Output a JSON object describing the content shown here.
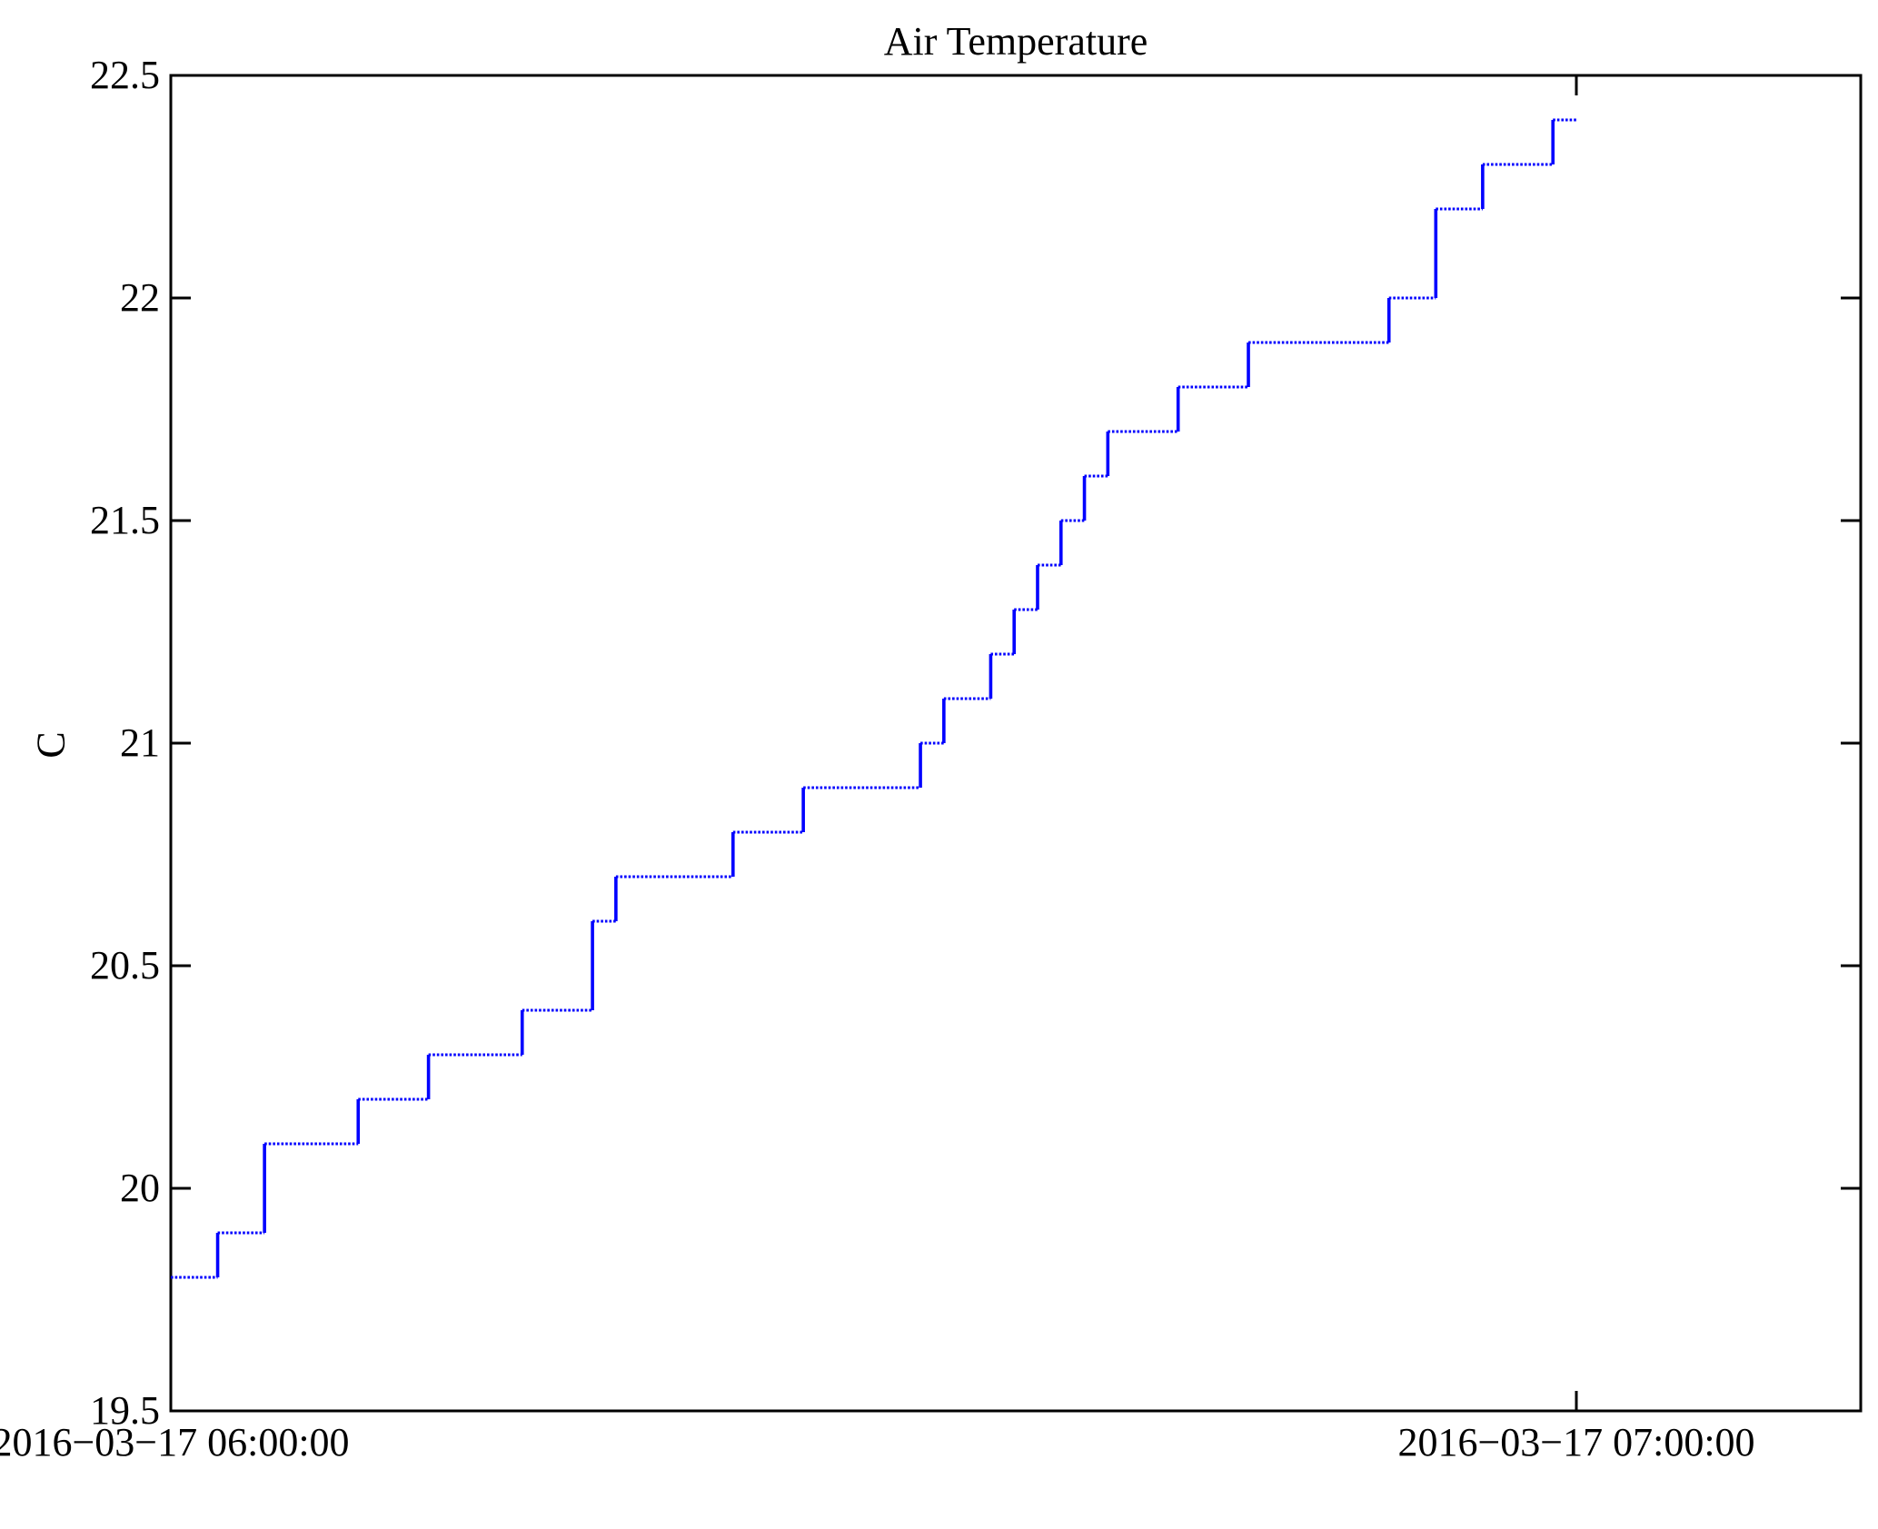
{
  "chart_data": {
    "type": "line",
    "style": "step",
    "title": "Air Temperature",
    "ylabel": "C",
    "grid": false,
    "legend": "none",
    "line_color": "#0000ff",
    "axis_color": "#000000",
    "background_color": "#ffffff",
    "x_axis": {
      "tick_labels": [
        "2016−03−17 06:00:00",
        "2016−03−17 07:00:00"
      ],
      "tick_minutes": [
        0,
        60
      ],
      "minutes_span": 60,
      "xlim_minutes": [
        0,
        72.1
      ]
    },
    "y_axis": {
      "min": 19.5,
      "max": 22.5,
      "tick_values": [
        19.5,
        20,
        20.5,
        21,
        21.5,
        22,
        22.5
      ],
      "tick_labels": [
        "19.5",
        "20",
        "20.5",
        "21",
        "21.5",
        "22",
        "22.5"
      ]
    },
    "series": [
      {
        "name": "air-temperature",
        "unit": "C",
        "points_minutes_celsius": [
          [
            0,
            19.8
          ],
          [
            2,
            19.9
          ],
          [
            4,
            20.1
          ],
          [
            8,
            20.2
          ],
          [
            11,
            20.3
          ],
          [
            15,
            20.4
          ],
          [
            18,
            20.6
          ],
          [
            19,
            20.7
          ],
          [
            24,
            20.8
          ],
          [
            27,
            20.9
          ],
          [
            32,
            21.0
          ],
          [
            33,
            21.1
          ],
          [
            35,
            21.2
          ],
          [
            36,
            21.3
          ],
          [
            37,
            21.4
          ],
          [
            38,
            21.5
          ],
          [
            39,
            21.6
          ],
          [
            40,
            21.7
          ],
          [
            43,
            21.8
          ],
          [
            46,
            21.9
          ],
          [
            52,
            22.0
          ],
          [
            54,
            22.2
          ],
          [
            56,
            22.3
          ],
          [
            59,
            22.4
          ]
        ],
        "end_minute": 60
      }
    ]
  }
}
